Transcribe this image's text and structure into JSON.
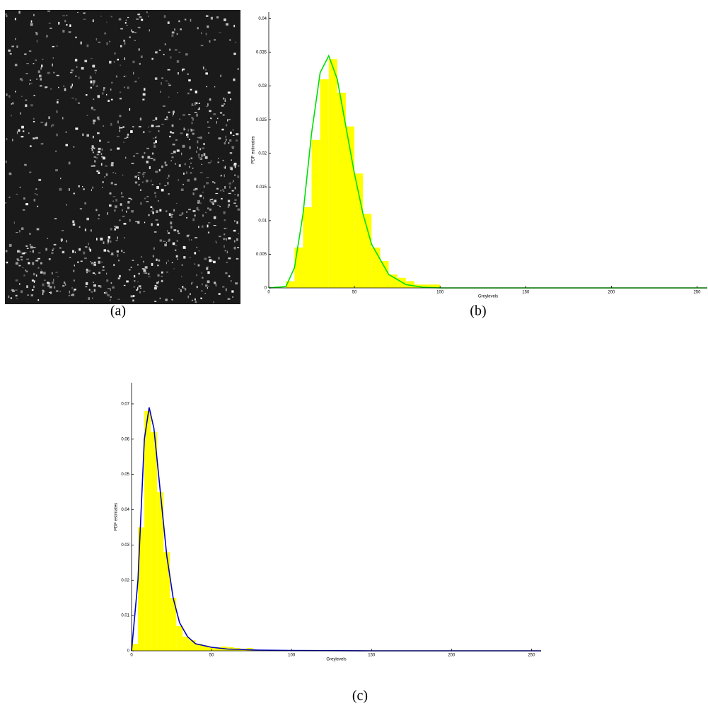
{
  "captions": [
    "(a)",
    "(b)",
    "(c)"
  ],
  "chart_data": [
    {
      "type": "histogram",
      "xlabel": "Greylevels",
      "ylabel": "PDF estimates",
      "color": "#ffff00",
      "bins": [
        10,
        15,
        20,
        25,
        30,
        35,
        40,
        45,
        50,
        55,
        60,
        65,
        70,
        75,
        80,
        85,
        90,
        95,
        100
      ],
      "values": [
        0.001,
        0.006,
        0.012,
        0.022,
        0.031,
        0.034,
        0.029,
        0.024,
        0.017,
        0.011,
        0.006,
        0.004,
        0.002,
        0.0015,
        0.001,
        0.0005,
        0.0005,
        0.0005
      ],
      "fit": {
        "color": "#00e000",
        "x": [
          0,
          10,
          15,
          20,
          25,
          30,
          35,
          40,
          45,
          50,
          55,
          60,
          70,
          80,
          90,
          100,
          150,
          256
        ],
        "values": [
          0,
          0.0002,
          0.003,
          0.011,
          0.023,
          0.032,
          0.0345,
          0.031,
          0.024,
          0.017,
          0.011,
          0.0065,
          0.002,
          0.0005,
          0.0001,
          0,
          0,
          0
        ]
      },
      "xlim": [
        0,
        256
      ],
      "xticks": [
        0,
        50,
        100,
        150,
        200,
        250
      ],
      "ylim": [
        0,
        0.041
      ],
      "yticks": [
        0,
        0.005,
        0.01,
        0.015,
        0.02,
        0.025,
        0.03,
        0.035,
        0.04
      ]
    },
    {
      "type": "histogram",
      "xlabel": "Greylevels",
      "ylabel": "PDF estimates",
      "color": "#ffff00",
      "bins": [
        0,
        4,
        8,
        12,
        16,
        20,
        24,
        28,
        32,
        36,
        40,
        44,
        48,
        52,
        56,
        60,
        64,
        68,
        72,
        76,
        80
      ],
      "values": [
        0.002,
        0.035,
        0.068,
        0.062,
        0.045,
        0.028,
        0.015,
        0.007,
        0.004,
        0.003,
        0.002,
        0.0015,
        0.001,
        0.001,
        0.0012,
        0.001,
        0.0008,
        0.0006,
        0.0008,
        0.0003
      ],
      "fit": {
        "color": "#0000c0",
        "x": [
          0,
          4,
          8,
          11,
          14,
          18,
          22,
          26,
          30,
          35,
          40,
          50,
          60,
          80,
          100,
          150,
          256
        ],
        "values": [
          0,
          0.02,
          0.06,
          0.069,
          0.063,
          0.045,
          0.027,
          0.015,
          0.008,
          0.004,
          0.002,
          0.001,
          0.0005,
          0.0002,
          0.0001,
          0,
          0
        ]
      },
      "xlim": [
        0,
        256
      ],
      "xticks": [
        0,
        50,
        100,
        150,
        200,
        250
      ],
      "ylim": [
        0,
        0.076
      ],
      "yticks": [
        0,
        0.01,
        0.02,
        0.03,
        0.04,
        0.05,
        0.06,
        0.07
      ]
    }
  ]
}
